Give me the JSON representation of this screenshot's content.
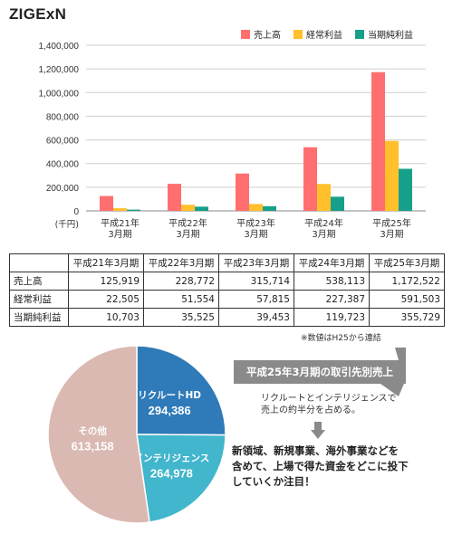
{
  "brand": "ZIGExN",
  "colors": {
    "sales": "#ff6f6f",
    "ordinary_profit": "#ffc02b",
    "net_profit": "#16a08a",
    "grid": "#cfcfcf",
    "pie_recruit": "#2f7ab8",
    "pie_intelligence": "#41b6cc",
    "pie_other": "#dab9b2",
    "callout_bg": "#8a8a8a"
  },
  "legend": [
    "売上高",
    "経常利益",
    "当期純利益"
  ],
  "chart_data": [
    {
      "type": "bar",
      "categories": [
        "平成21年\n3月期",
        "平成22年\n3月期",
        "平成23年\n3月期",
        "平成24年\n3月期",
        "平成25年\n3月期"
      ],
      "series": [
        {
          "name": "売上高",
          "values": [
            125919,
            228772,
            315714,
            538113,
            1172522
          ]
        },
        {
          "name": "経常利益",
          "values": [
            22505,
            51554,
            57815,
            227387,
            591503
          ]
        },
        {
          "name": "当期純利益",
          "values": [
            10703,
            35525,
            39453,
            119723,
            355729
          ]
        }
      ],
      "yticks": [
        "1,400,000",
        "1,200,000",
        "1,000,000",
        "800,000",
        "600,000",
        "400,000",
        "200,000",
        "0"
      ],
      "ylim": [
        0,
        1400000
      ],
      "ylabel": "(千円)",
      "grid": true,
      "legend_position": "top-right"
    },
    {
      "type": "pie",
      "title": "平成25年3月期の取引先別売上",
      "slices": [
        {
          "label": "リクルートHD",
          "value": 294386,
          "value_text": "294,386"
        },
        {
          "label": "インテリジェンス",
          "value": 264978,
          "value_text": "264,978"
        },
        {
          "label": "その他",
          "value": 613158,
          "value_text": "613,158"
        }
      ]
    }
  ],
  "table": {
    "headers": [
      "",
      "平成21年3月期",
      "平成22年3月期",
      "平成23年3月期",
      "平成24年3月期",
      "平成25年3月期"
    ],
    "rows": [
      {
        "label": "売上高",
        "cells": [
          "125,919",
          "228,772",
          "315,714",
          "538,113",
          "1,172,522"
        ]
      },
      {
        "label": "経常利益",
        "cells": [
          "22,505",
          "51,554",
          "57,815",
          "227,387",
          "591,503"
        ]
      },
      {
        "label": "当期純利益",
        "cells": [
          "10,703",
          "35,525",
          "39,453",
          "119,723",
          "355,729"
        ]
      }
    ]
  },
  "note": "※数値はH25から連結",
  "callout": {
    "title": "平成25年3月期の取引先別売上",
    "text_line1": "リクルートとインテリジェンスで",
    "text_line2": "売上の約半分を占める。"
  },
  "conclusion": {
    "line1": "新領域、新規事業、海外事業などを",
    "line2": "含めて、上場で得た資金をどこに投下",
    "line3": "していくか注目！"
  }
}
